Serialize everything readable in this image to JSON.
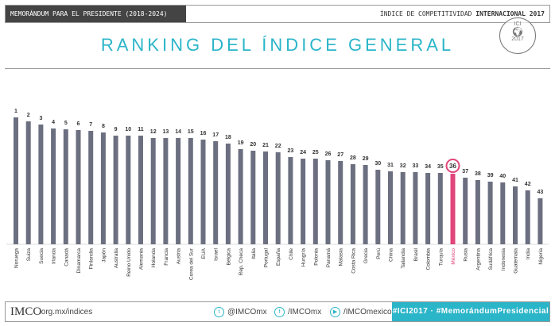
{
  "header": {
    "left": "MEMORÁNDUM PARA EL PRESIDENTE (2018-2024)",
    "right_prefix": "ÍNDICE DE COMPETITIVIDAD ",
    "right_bold": "INTERNACIONAL 2017"
  },
  "stamp": {
    "top": "ICI",
    "bottom": "2017"
  },
  "chart_data": {
    "type": "bar",
    "title": "RANKING DEL ÍNDICE GENERAL",
    "xlabel": "",
    "ylabel": "",
    "note": "values are relative bar lengths (no y axis shown); data labels are ranks",
    "highlight": "México",
    "colors": {
      "bar": "#6b6f80",
      "highlight": "#e0457b"
    },
    "categories": [
      "Noruega",
      "Suiza",
      "Suecia",
      "Irlanda",
      "Canadá",
      "Dinamarca",
      "Finlandia",
      "Japón",
      "Australia",
      "Reino Unido",
      "Alemania",
      "Holanda",
      "Francia",
      "Austria",
      "Corea del Sur",
      "EUA",
      "Israel",
      "Bélgica",
      "Rep. Checa",
      "Italia",
      "Portugal",
      "España",
      "Chile",
      "Hungría",
      "Polonia",
      "Panamá",
      "Malasia",
      "Costa Rica",
      "Grecia",
      "Perú",
      "China",
      "Tailandia",
      "Brasil",
      "Colombia",
      "Turquía",
      "México",
      "Rusia",
      "Argentina",
      "Sudáfrica",
      "Indonesia",
      "Guatemala",
      "India",
      "Nigeria"
    ],
    "ranks": [
      "1",
      "2",
      "3",
      "4",
      "5",
      "6",
      "7",
      "8",
      "9",
      "10",
      "11",
      "12",
      "13",
      "14",
      "15",
      "16",
      "17",
      "18",
      "19",
      "20",
      "21",
      "22",
      "23",
      "24",
      "25",
      "26",
      "27",
      "28",
      "29",
      "30",
      "31",
      "32",
      "33",
      "34",
      "35",
      "36",
      "37",
      "38",
      "39",
      "40",
      "41",
      "42",
      "43"
    ],
    "values": [
      160,
      155,
      151,
      146,
      145,
      144,
      143,
      141,
      137,
      137,
      137,
      134,
      134,
      134,
      134,
      132,
      130,
      127,
      120,
      118,
      117,
      116,
      110,
      108,
      108,
      106,
      105,
      101,
      100,
      94,
      92,
      91,
      91,
      90,
      90,
      89,
      84,
      81,
      79,
      78,
      73,
      68,
      58
    ]
  },
  "footer": {
    "logo": "IMCO",
    "site": ".org.mx/indices",
    "twitter": "@IMCOmx",
    "facebook": "/IMCOmx",
    "youtube": "/IMCOmexico",
    "hashtag": "#ICI2017 · #MemorándumPresidencial"
  }
}
